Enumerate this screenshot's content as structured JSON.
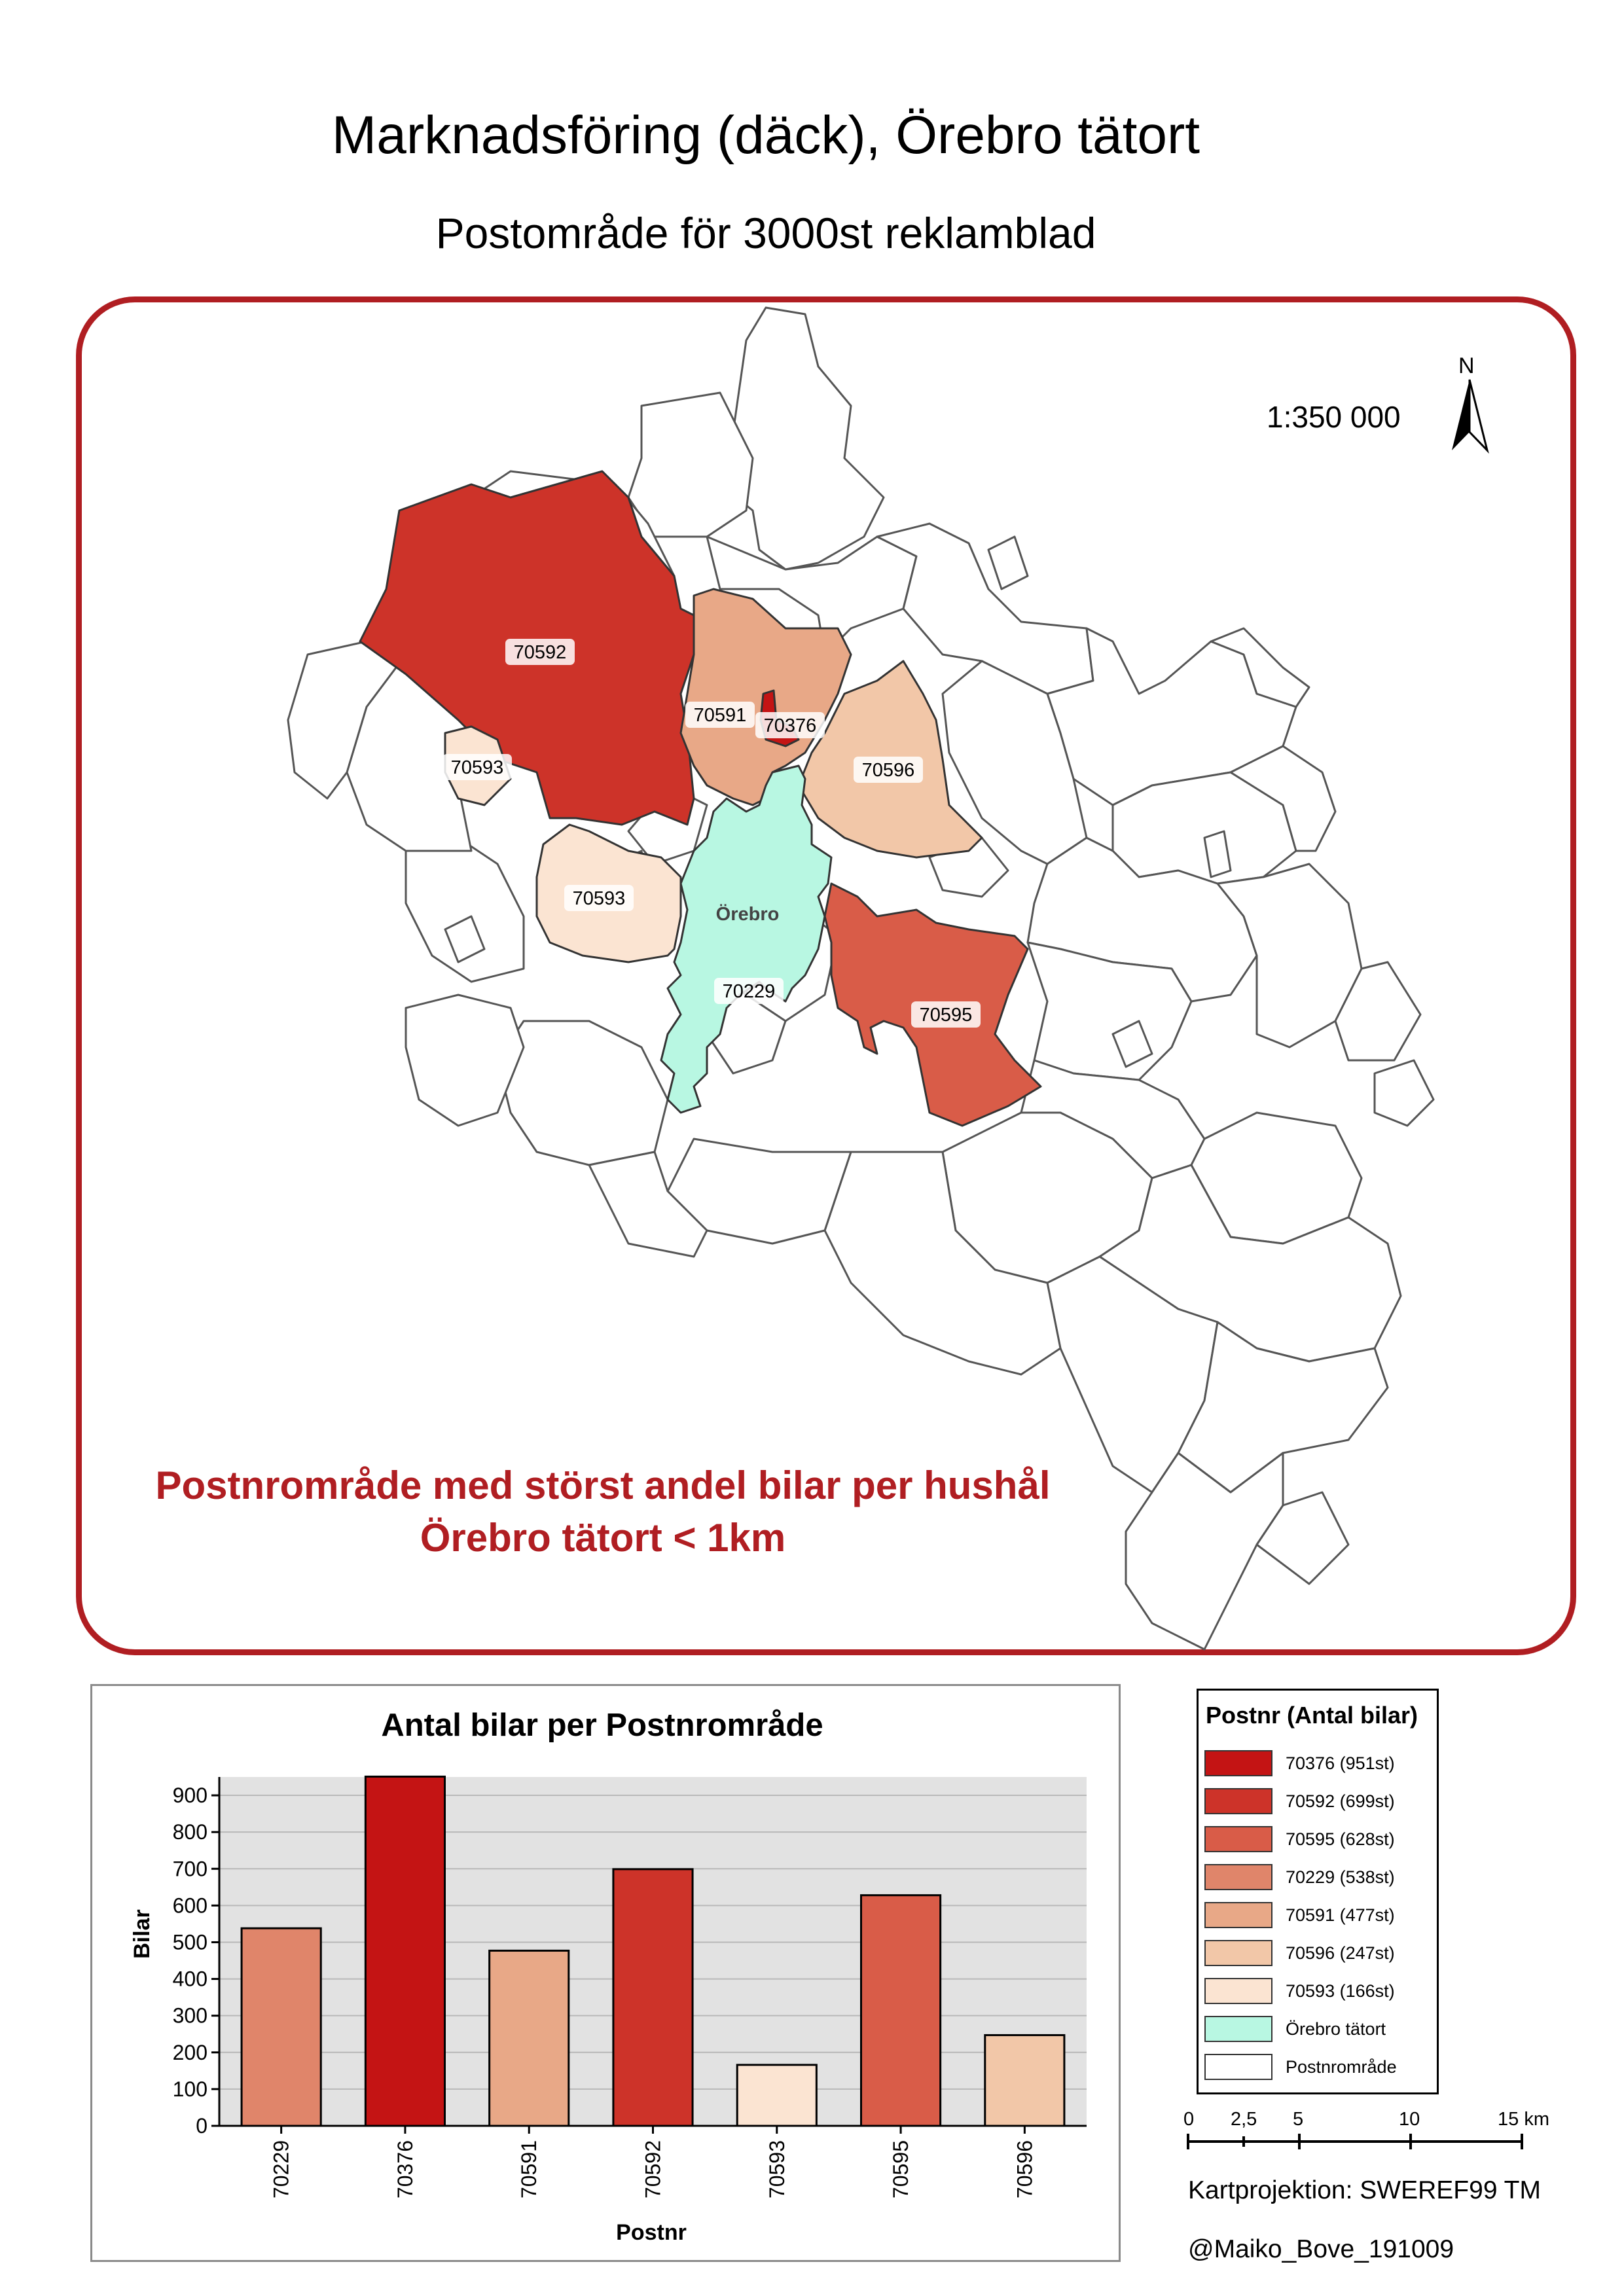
{
  "title": "Marknadsföring (däck), Örebro tätort",
  "subtitle": "Postområde för 3000st reklamblad",
  "map": {
    "scale_text": "1:350 000",
    "north_label": "N",
    "headline_line1": "Postnrområde med störst andel bilar per hushål",
    "headline_line2": "Örebro tätort < 1km",
    "region_labels": [
      "70592",
      "70591",
      "70376",
      "70593",
      "70596",
      "70593",
      "Örebro",
      "70229",
      "70595"
    ],
    "colors": {
      "70376": "#c41414",
      "70592": "#cd3329",
      "70595": "#d95c48",
      "70229": "#e0856a",
      "70591": "#e8a887",
      "70596": "#f2c7a8",
      "70593": "#fbe4d2",
      "tatort": "#b8f7e2",
      "frame": "#b01e22"
    }
  },
  "chart_data": {
    "type": "bar",
    "title": "Antal bilar per Postnrområde",
    "xlabel": "Postnr",
    "ylabel": "Bilar",
    "categories": [
      "70229",
      "70376",
      "70591",
      "70592",
      "70593",
      "70595",
      "70596"
    ],
    "values": [
      538,
      951,
      477,
      699,
      166,
      628,
      247
    ],
    "colors": [
      "#e0856a",
      "#c41414",
      "#e8a887",
      "#cd3329",
      "#fbe4d2",
      "#d95c48",
      "#f2c7a8"
    ],
    "ylim": [
      0,
      950
    ],
    "yticks": [
      0,
      100,
      200,
      300,
      400,
      500,
      600,
      700,
      800,
      900
    ],
    "grid": true
  },
  "legend": {
    "title": "Postnr (Antal bilar)",
    "items": [
      {
        "label": "70376 (951st)",
        "color": "#c41414"
      },
      {
        "label": "70592 (699st)",
        "color": "#cd3329"
      },
      {
        "label": "70595 (628st)",
        "color": "#d95c48"
      },
      {
        "label": "70229 (538st)",
        "color": "#e0856a"
      },
      {
        "label": "70591 (477st)",
        "color": "#e8a887"
      },
      {
        "label": "70596 (247st)",
        "color": "#f2c7a8"
      },
      {
        "label": "70593 (166st)",
        "color": "#fbe4d2"
      },
      {
        "label": "Örebro tätort",
        "color": "#b8f7e2"
      },
      {
        "label": "Postnrområde",
        "color": "#ffffff"
      }
    ]
  },
  "scalebar": {
    "labels": [
      "0",
      "2,5",
      "5",
      "10",
      "15 km"
    ]
  },
  "projection": "Kartprojektion: SWEREF99 TM",
  "credit": "@Maiko_Bove_191009"
}
